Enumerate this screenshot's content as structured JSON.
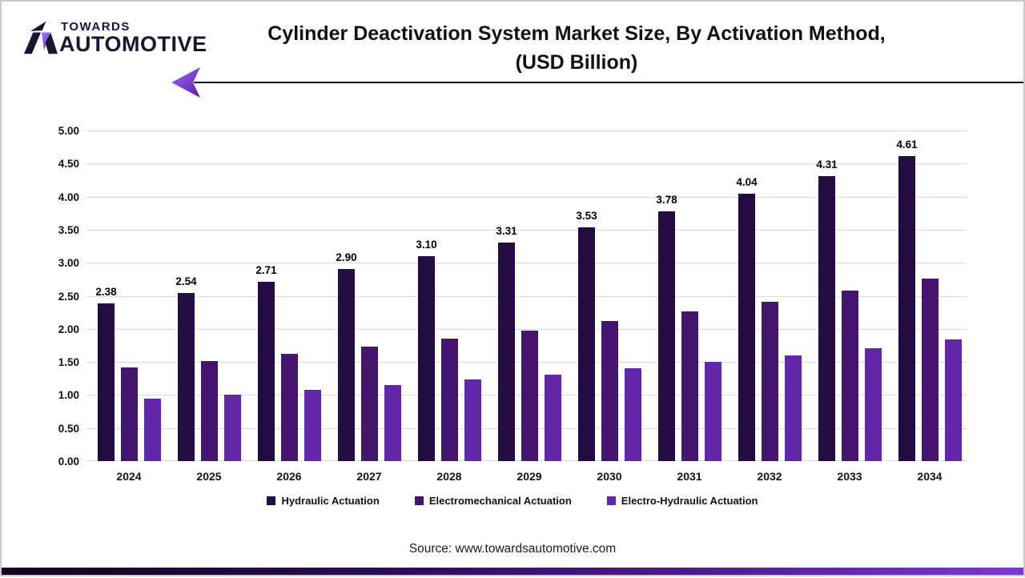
{
  "brand": {
    "line1": "TOWARDS",
    "line2": "AUTOMOTIVE",
    "accent_color": "#8b5cf6",
    "dark_color": "#1b1433"
  },
  "title": {
    "line1": "Cylinder Deactivation System Market Size, By Activation Method,",
    "line2": "(USD Billion)"
  },
  "source_text": "Source: www.towardsautomotive.com",
  "colors": {
    "series1": "#240b42",
    "series2": "#46156f",
    "series3": "#6226a8",
    "gridline": "#d9d9d9",
    "header_rule": "#141414",
    "bottom_band_left": "#140321",
    "bottom_band_right": "#7d36df"
  },
  "chart_data": {
    "type": "bar",
    "categories": [
      "2024",
      "2025",
      "2026",
      "2027",
      "2028",
      "2029",
      "2030",
      "2031",
      "2032",
      "2033",
      "2034"
    ],
    "series": [
      {
        "name": "Hydraulic Actuation",
        "color": "#240b42",
        "values": [
          2.38,
          2.54,
          2.71,
          2.9,
          3.1,
          3.31,
          3.53,
          3.78,
          4.04,
          4.31,
          4.61
        ],
        "value_labels_shown": true
      },
      {
        "name": "Electromechanical Actuation",
        "color": "#46156f",
        "values": [
          1.42,
          1.51,
          1.62,
          1.73,
          1.85,
          1.97,
          2.12,
          2.27,
          2.41,
          2.58,
          2.76
        ],
        "value_labels_shown": false
      },
      {
        "name": "Electro-Hydraulic Actuation",
        "color": "#6226a8",
        "values": [
          0.95,
          1.01,
          1.08,
          1.15,
          1.23,
          1.31,
          1.4,
          1.5,
          1.6,
          1.71,
          1.84
        ],
        "value_labels_shown": false
      }
    ],
    "title": "Cylinder Deactivation System Market Size, By Activation Method, (USD Billion)",
    "xlabel": "",
    "ylabel": "",
    "ylim": [
      0,
      5
    ],
    "ytick_step": 0.5,
    "ytick_labels": [
      "0.00",
      "0.50",
      "1.00",
      "1.50",
      "2.00",
      "2.50",
      "3.00",
      "3.50",
      "4.00",
      "4.50",
      "5.00"
    ],
    "grid": true,
    "legend_position": "bottom"
  }
}
